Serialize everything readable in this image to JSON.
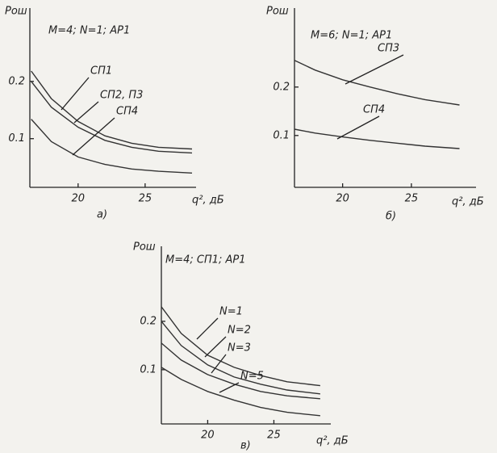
{
  "chart_data": [
    {
      "type": "line",
      "annotation": "M=4; N=1; АР1",
      "y_label": "Pош",
      "x_label": "q², дБ",
      "caption": "а)",
      "x": [
        16.5,
        18,
        20,
        22,
        24,
        26,
        28.5
      ],
      "series": [
        {
          "name": "СП1",
          "color": "#333333",
          "values": [
            0.218,
            0.17,
            0.13,
            0.105,
            0.092,
            0.085,
            0.082
          ]
        },
        {
          "name": "СП2, П3",
          "color": "#333333",
          "values": [
            0.2,
            0.155,
            0.12,
            0.097,
            0.085,
            0.078,
            0.075
          ]
        },
        {
          "name": "СП4",
          "color": "#333333",
          "values": [
            0.134,
            0.095,
            0.068,
            0.055,
            0.047,
            0.043,
            0.04
          ]
        }
      ],
      "xlim": [
        16.4,
        28.8
      ],
      "ylim": [
        0.015,
        0.328
      ],
      "xticks": [
        20,
        25
      ],
      "yticks": [
        0.1,
        0.2
      ]
    },
    {
      "type": "line",
      "annotation": "M=6; N=1; АР1",
      "y_label": "Pош",
      "x_label": "q², дБ",
      "caption": "б)",
      "x": [
        16.5,
        18,
        20,
        22,
        24,
        26,
        28.5
      ],
      "series": [
        {
          "name": "СП3",
          "color": "#333333",
          "values": [
            0.255,
            0.235,
            0.215,
            0.2,
            0.186,
            0.174,
            0.163
          ]
        },
        {
          "name": "СП4",
          "color": "#333333",
          "values": [
            0.113,
            0.105,
            0.097,
            0.09,
            0.084,
            0.078,
            0.073
          ]
        }
      ],
      "xlim": [
        16.5,
        29.7
      ],
      "ylim": [
        -0.007,
        0.363
      ],
      "xticks": [
        20,
        25
      ],
      "yticks": [
        0.1,
        0.2
      ]
    },
    {
      "type": "line",
      "annotation": "M=4; СП1; АР1",
      "y_label": "Pош",
      "x_label": "q², дБ",
      "caption": "в)",
      "x": [
        16.5,
        18,
        20,
        22,
        24,
        26,
        28.5
      ],
      "series": [
        {
          "name": "N=1",
          "color": "#333333",
          "values": [
            0.23,
            0.175,
            0.13,
            0.105,
            0.088,
            0.075,
            0.067
          ]
        },
        {
          "name": "N=2",
          "color": "#333333",
          "values": [
            0.2,
            0.15,
            0.11,
            0.085,
            0.07,
            0.058,
            0.05
          ]
        },
        {
          "name": "N=3",
          "color": "#333333",
          "values": [
            0.155,
            0.12,
            0.09,
            0.07,
            0.055,
            0.046,
            0.04
          ]
        },
        {
          "name": "N=5",
          "color": "#333333",
          "values": [
            0.105,
            0.08,
            0.055,
            0.037,
            0.022,
            0.012,
            0.005
          ]
        }
      ],
      "xlim": [
        16.5,
        29.3
      ],
      "ylim": [
        -0.012,
        0.355
      ],
      "xticks": [
        20,
        25
      ],
      "yticks": [
        0.1,
        0.2
      ]
    }
  ]
}
